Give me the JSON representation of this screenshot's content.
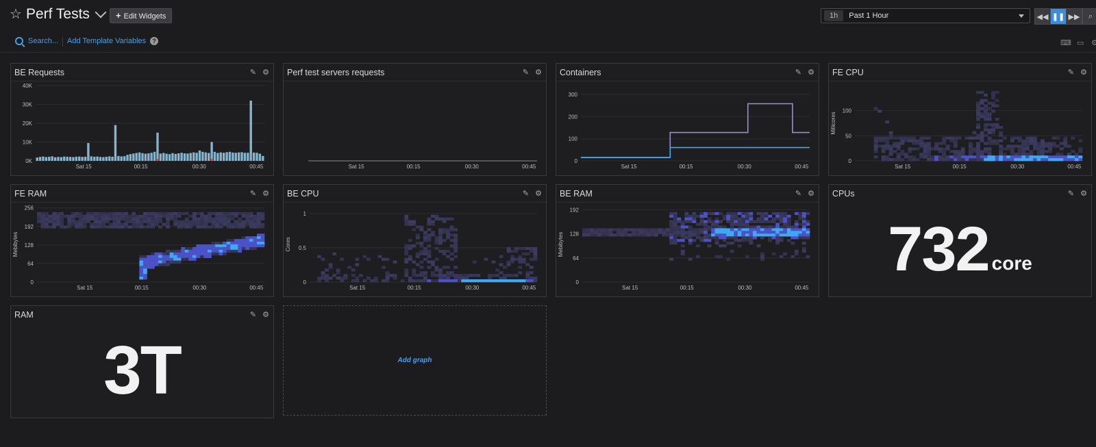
{
  "header": {
    "title": "Perf Tests",
    "edit_widgets": "Edit Widgets",
    "time_short": "1h",
    "time_label": "Past 1 Hour"
  },
  "subbar": {
    "search": "Search...",
    "template_vars": "Add Template Variables",
    "help": "?"
  },
  "colors": {
    "accent": "#4a9ee8",
    "bar": "#86b4cc",
    "bar_error": "#d45050",
    "heat_low": "#3f3d66",
    "heat_mid": "#4b52c7",
    "heat_high": "#3fa8f0",
    "line_purple": "#9a8fce",
    "line_blue": "#3fa8f0"
  },
  "widgets": [
    {
      "title": "BE Requests"
    },
    {
      "title": "Perf test servers requests"
    },
    {
      "title": "Containers"
    },
    {
      "title": "FE CPU"
    },
    {
      "title": "FE RAM"
    },
    {
      "title": "BE CPU"
    },
    {
      "title": "BE RAM"
    },
    {
      "title": "CPUs",
      "value": "732",
      "unit": "core"
    },
    {
      "title": "RAM",
      "value": "3T",
      "unit": ""
    }
  ],
  "add_graph": "Add graph",
  "chart_data": [
    {
      "id": "be_requests",
      "type": "bar",
      "x_ticks": [
        "Sat 15",
        "00:15",
        "00:30",
        "00:45"
      ],
      "y_ticks": [
        "0K",
        "10K",
        "20K",
        "30K",
        "40K"
      ],
      "ylim": [
        0,
        40000
      ],
      "values": [
        1800,
        2100,
        2300,
        2000,
        2200,
        2400,
        1900,
        2100,
        2000,
        2300,
        2200,
        2100,
        2000,
        2200,
        2300,
        2100,
        2200,
        9500,
        2400,
        2200,
        2300,
        2100,
        2000,
        2200,
        2400,
        2200,
        19000,
        2600,
        2400,
        2500,
        3200,
        3600,
        3900,
        4200,
        4500,
        4100,
        3800,
        4000,
        4300,
        4800,
        15000,
        3900,
        4200,
        3800,
        3600,
        4100,
        3700,
        4000,
        4300,
        4000,
        3900,
        4200,
        4500,
        4300,
        5500,
        4800,
        4500,
        4200,
        10000,
        4800,
        4200,
        4500,
        4300,
        4600,
        4800,
        4400,
        4300,
        4500,
        4600,
        4300,
        4300,
        32000,
        4400,
        4300,
        3800,
        2600
      ],
      "error_indices": [
        40,
        58
      ]
    },
    {
      "id": "perf_servers",
      "type": "line",
      "x_ticks": [
        "Sat 15",
        "00:15",
        "00:30",
        "00:45"
      ],
      "series": []
    },
    {
      "id": "containers",
      "type": "line",
      "x_ticks": [
        "Sat 15",
        "00:15",
        "00:30",
        "00:45"
      ],
      "y_ticks": [
        "0",
        "100",
        "200",
        "300"
      ],
      "ylim": [
        0,
        340
      ],
      "series": [
        {
          "color_key": "line_purple",
          "points": [
            [
              0,
              15
            ],
            [
              0.39,
              15
            ],
            [
              0.39,
              128
            ],
            [
              0.73,
              128
            ],
            [
              0.73,
              258
            ],
            [
              0.925,
              258
            ],
            [
              0.925,
              128
            ],
            [
              1,
              128
            ]
          ]
        },
        {
          "color_key": "line_blue",
          "points": [
            [
              0,
              15
            ],
            [
              0.39,
              15
            ],
            [
              0.39,
              60
            ],
            [
              1,
              60
            ]
          ]
        }
      ]
    },
    {
      "id": "fe_cpu",
      "type": "heatmap",
      "x_ticks": [
        "Sat 15",
        "00:15",
        "00:30",
        "00:45"
      ],
      "y_ticks": [
        "0",
        "50",
        "100"
      ],
      "ylabel": "Millicores",
      "ylim": [
        0,
        150
      ]
    },
    {
      "id": "fe_ram",
      "type": "heatmap",
      "x_ticks": [
        "Sat 15",
        "00:15",
        "00:30",
        "00:45"
      ],
      "y_ticks": [
        "0",
        "64",
        "128",
        "192",
        "256"
      ],
      "ylabel": "Mebibytes",
      "ylim": [
        0,
        260
      ]
    },
    {
      "id": "be_cpu",
      "type": "heatmap",
      "x_ticks": [
        "Sat 15",
        "00:15",
        "00:30",
        "00:45"
      ],
      "y_ticks": [
        "0",
        "0.5",
        "1"
      ],
      "ylabel": "Cores",
      "ylim": [
        0,
        1.1
      ]
    },
    {
      "id": "be_ram",
      "type": "heatmap",
      "x_ticks": [
        "Sat 15",
        "00:15",
        "00:30",
        "00:45"
      ],
      "y_ticks": [
        "0",
        "64",
        "128",
        "192"
      ],
      "ylabel": "Mebibytes",
      "ylim": [
        0,
        200
      ]
    }
  ]
}
